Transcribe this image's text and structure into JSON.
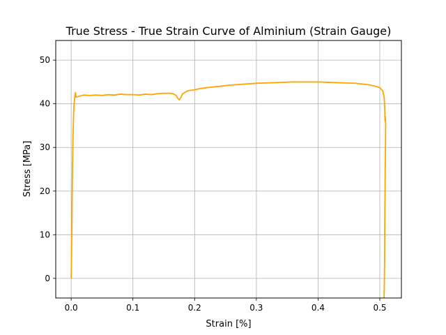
{
  "chart_data": {
    "type": "line",
    "title": "True Stress - True Strain Curve of Alminium (Strain Gauge)",
    "xlabel": "Strain [%]",
    "ylabel": "Stress [MPa]",
    "xlim": [
      -0.025,
      0.535
    ],
    "ylim": [
      -4.5,
      54.5
    ],
    "xticks": [
      0.0,
      0.1,
      0.2,
      0.3,
      0.4,
      0.5
    ],
    "xtick_labels": [
      "0.0",
      "0.1",
      "0.2",
      "0.3",
      "0.4",
      "0.5"
    ],
    "yticks": [
      0,
      10,
      20,
      30,
      40,
      50
    ],
    "ytick_labels": [
      "0",
      "10",
      "20",
      "30",
      "40",
      "50"
    ],
    "grid": true,
    "legend": "none",
    "series": [
      {
        "color": "#ffa500",
        "x": [
          0.0,
          0.001,
          0.002,
          0.003,
          0.004,
          0.005,
          0.006,
          0.007,
          0.008,
          0.01,
          0.015,
          0.02,
          0.03,
          0.04,
          0.05,
          0.06,
          0.07,
          0.08,
          0.09,
          0.1,
          0.11,
          0.12,
          0.13,
          0.14,
          0.15,
          0.16,
          0.165,
          0.17,
          0.173,
          0.175,
          0.178,
          0.18,
          0.185,
          0.19,
          0.2,
          0.21,
          0.22,
          0.24,
          0.26,
          0.28,
          0.3,
          0.32,
          0.34,
          0.36,
          0.38,
          0.4,
          0.42,
          0.44,
          0.46,
          0.48,
          0.49,
          0.5,
          0.505,
          0.507,
          0.508,
          0.5085,
          0.509,
          0.5095,
          0.5092,
          0.5088,
          0.5085,
          0.5082,
          0.508,
          0.5078,
          0.5075,
          0.5072,
          0.507,
          0.5068
        ],
        "y": [
          0.0,
          10.0,
          24.0,
          33.0,
          38.0,
          40.5,
          41.8,
          42.6,
          41.5,
          41.6,
          41.8,
          42.0,
          41.9,
          42.0,
          41.9,
          42.1,
          42.0,
          42.2,
          42.1,
          42.1,
          42.0,
          42.2,
          42.1,
          42.3,
          42.4,
          42.4,
          42.3,
          41.9,
          41.2,
          40.9,
          41.5,
          42.2,
          42.7,
          43.0,
          43.2,
          43.5,
          43.7,
          44.0,
          44.3,
          44.5,
          44.7,
          44.8,
          44.9,
          45.0,
          45.0,
          45.0,
          44.9,
          44.8,
          44.7,
          44.4,
          44.1,
          43.7,
          42.9,
          41.5,
          39.0,
          36.0,
          37.0,
          35.5,
          30.0,
          25.0,
          20.0,
          15.0,
          10.0,
          5.0,
          0.0,
          -2.0,
          -3.5,
          -4.5
        ]
      }
    ]
  }
}
